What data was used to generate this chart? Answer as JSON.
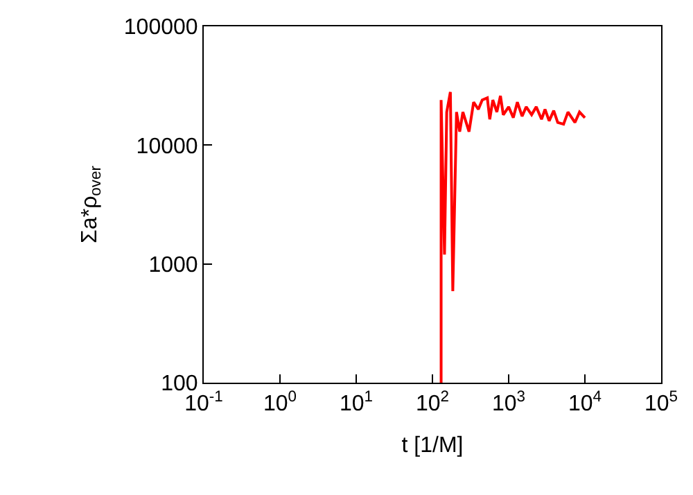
{
  "chart_data": {
    "type": "line",
    "xlabel": "t [1/M]",
    "ylabel": "Σa*ρ$_{over}$",
    "log": "xy",
    "grid": false,
    "legend": false,
    "marker": "none",
    "line_style": "solid",
    "xlim": [
      0.1,
      100000
    ],
    "ylim": [
      100,
      100000
    ],
    "xticks": [
      {
        "value": 0.1,
        "label": "10$^{-1}$"
      },
      {
        "value": 1,
        "label": "10$^{0}$"
      },
      {
        "value": 10,
        "label": "10$^{1}$"
      },
      {
        "value": 100,
        "label": "10$^{2}$"
      },
      {
        "value": 1000,
        "label": "10$^{3}$"
      },
      {
        "value": 10000,
        "label": "10$^{4}$"
      },
      {
        "value": 100000,
        "label": "10$^{5}$"
      }
    ],
    "yticks": [
      100,
      1000,
      10000,
      100000
    ],
    "series": [
      {
        "color": "#ff0000",
        "x": [
          130,
          130,
          144,
          154,
          172,
          185,
          207,
          228,
          251,
          302,
          347,
          400,
          450,
          525,
          565,
          620,
          700,
          780,
          850,
          1000,
          1150,
          1300,
          1500,
          1700,
          2000,
          2300,
          2700,
          3000,
          3400,
          3900,
          4400,
          5250,
          6000,
          7400,
          8500,
          10000
        ],
        "values": [
          100,
          24000,
          1200,
          19000,
          28000,
          590,
          19000,
          13000,
          19000,
          13000,
          23000,
          20000,
          24000,
          25000,
          16500,
          24000,
          19000,
          26000,
          18000,
          21000,
          17000,
          23000,
          17500,
          21000,
          18000,
          21000,
          16500,
          20000,
          16000,
          19500,
          15500,
          15000,
          19000,
          15500,
          19000,
          17000
        ]
      }
    ]
  }
}
